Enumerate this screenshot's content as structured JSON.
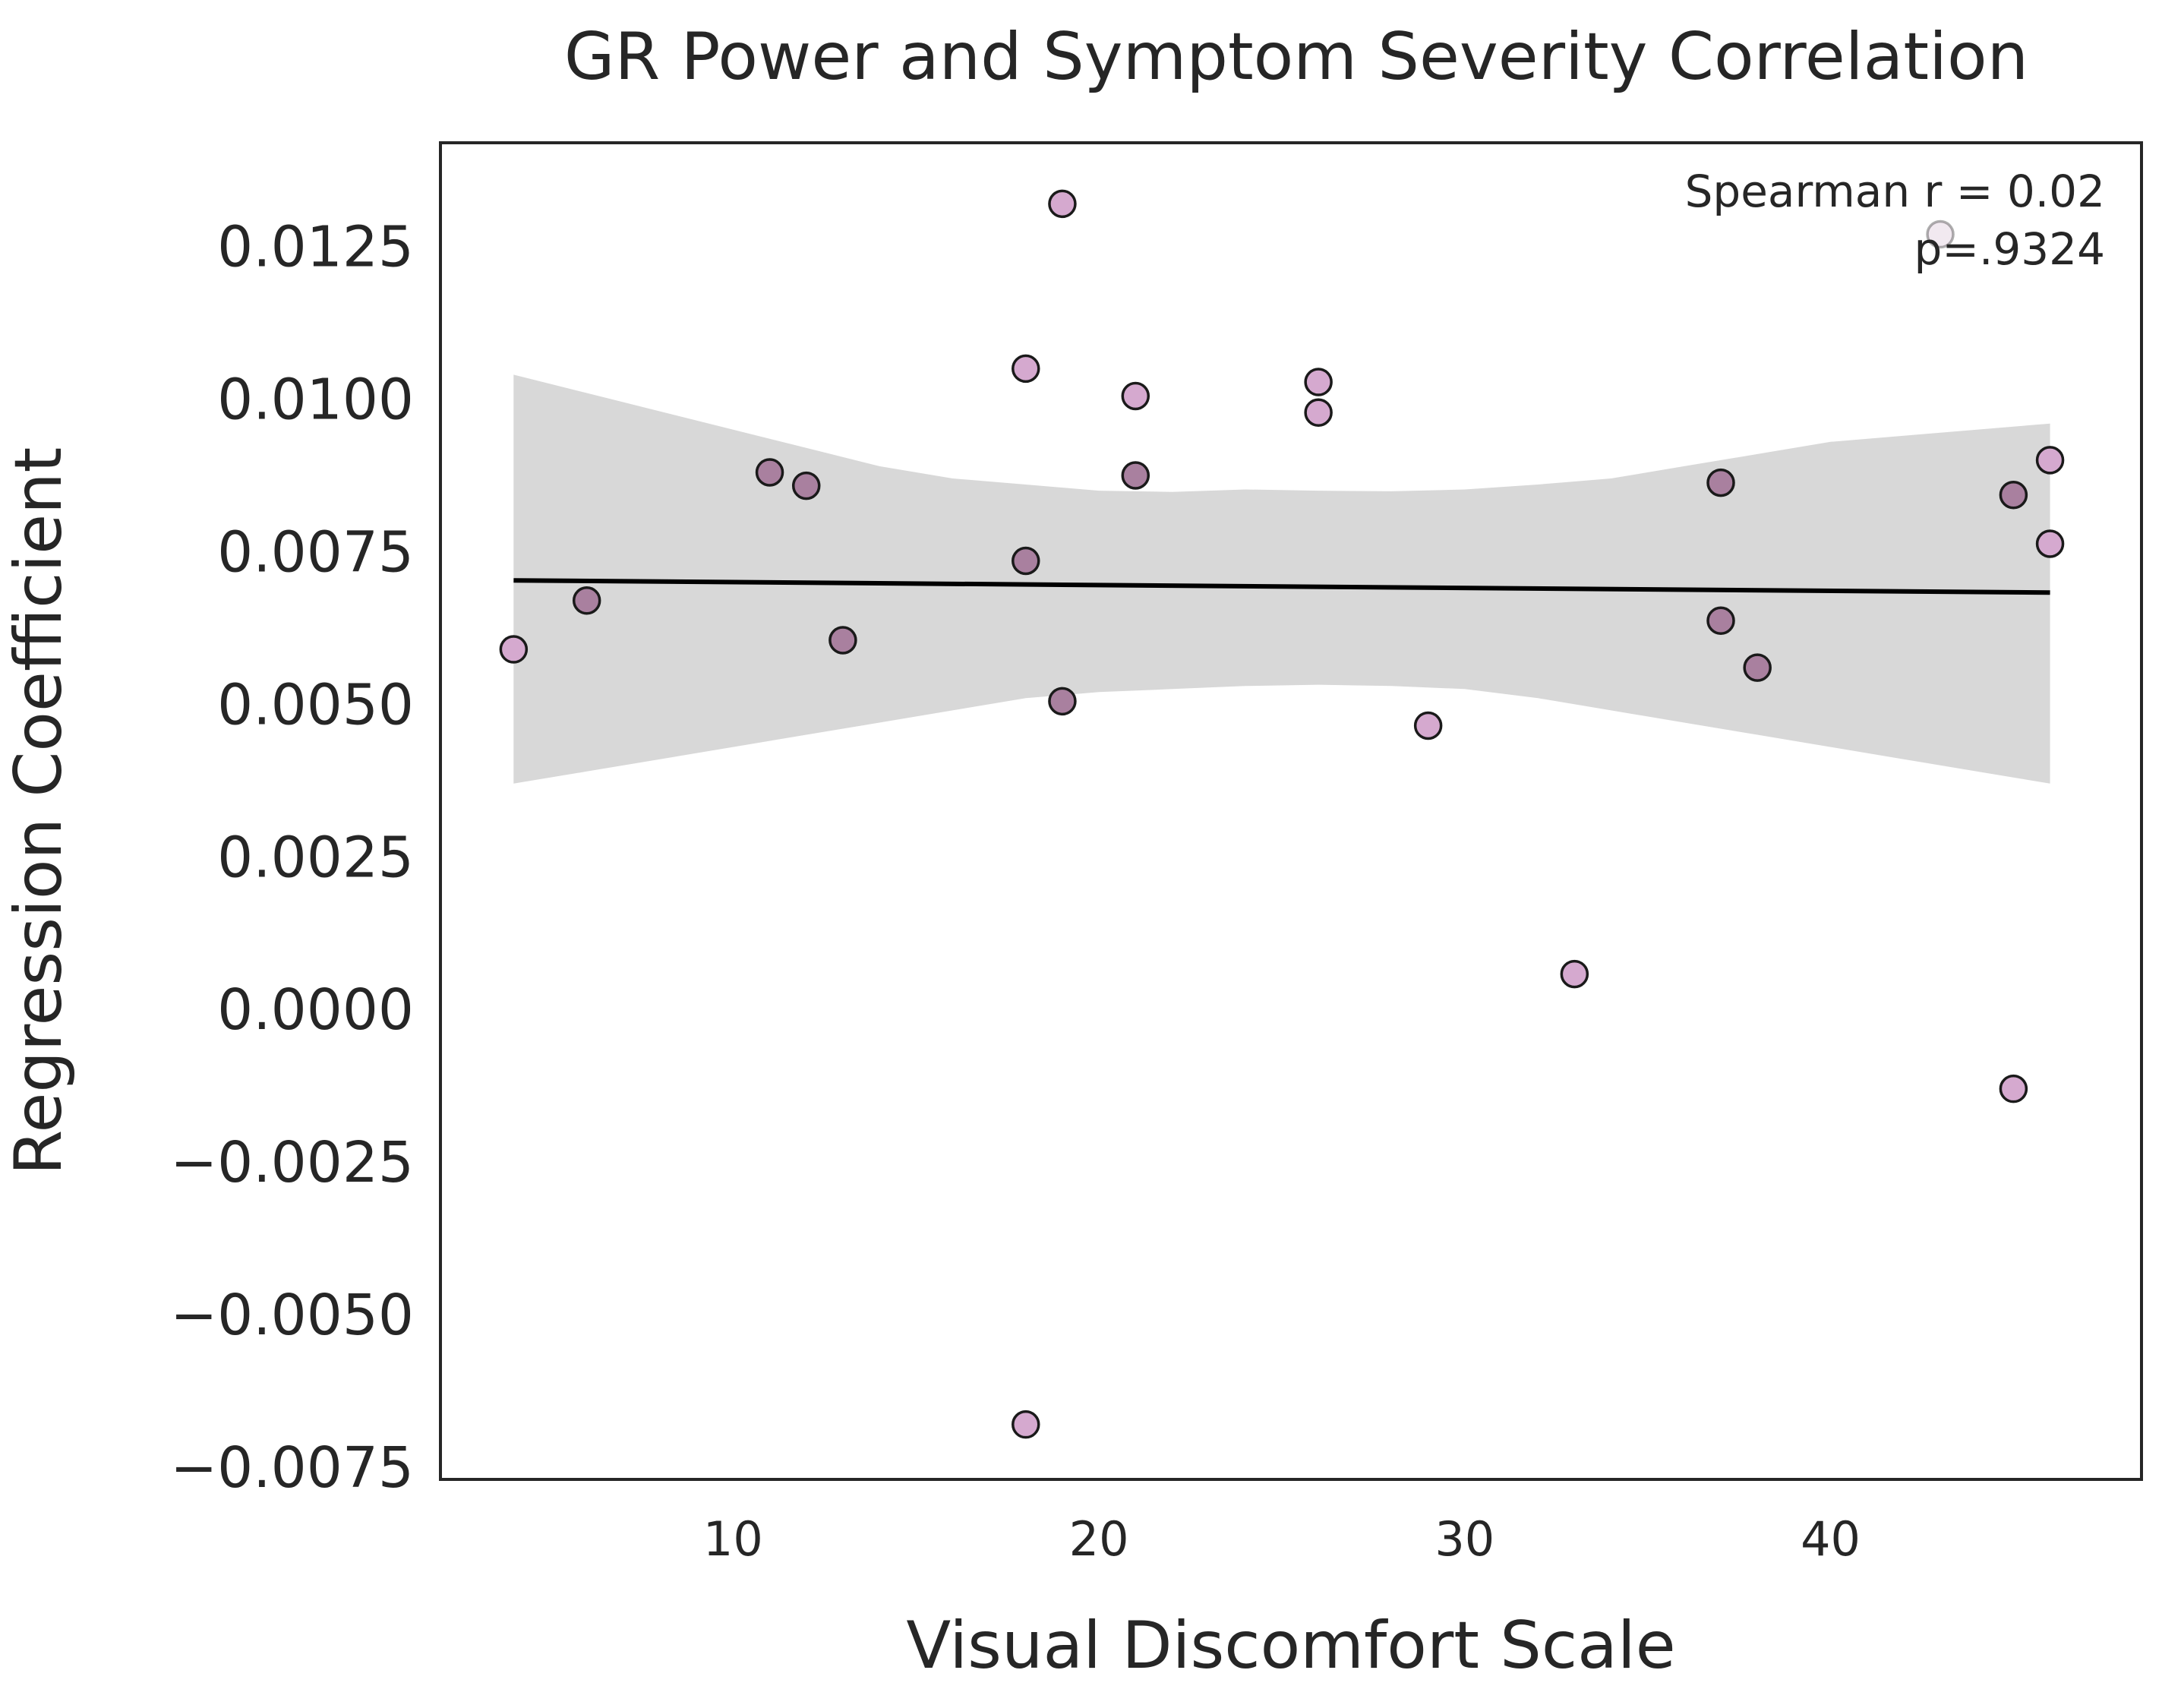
{
  "chart_data": {
    "type": "scatter",
    "title": "GR Power and Symptom Severity Correlation",
    "xlabel": "Visual Discomfort Scale",
    "ylabel": "Regression Coefficient",
    "xlim": [
      2,
      48.5
    ],
    "ylim": [
      -0.0077,
      0.0142
    ],
    "xticks": [
      10,
      20,
      30,
      40
    ],
    "yticks": [
      -0.0075,
      -0.005,
      -0.0025,
      0.0,
      0.0025,
      0.005,
      0.0075,
      0.01,
      0.0125
    ],
    "ytick_labels": [
      "−0.0075",
      "−0.0050",
      "−0.0025",
      "0.0000",
      "0.0025",
      "0.0050",
      "0.0075",
      "0.0100",
      "0.0125"
    ],
    "xtick_labels": [
      "10",
      "20",
      "30",
      "40"
    ],
    "grid": false,
    "annotation": {
      "line1": "Spearman r = 0.02",
      "line2": "p=.9324",
      "position": "top-right"
    },
    "points": [
      {
        "x": 4,
        "y": 0.0059,
        "tone": "light"
      },
      {
        "x": 6,
        "y": 0.0067,
        "tone": "dark"
      },
      {
        "x": 11,
        "y": 0.0088,
        "tone": "dark"
      },
      {
        "x": 12,
        "y": 0.00858,
        "tone": "dark"
      },
      {
        "x": 13,
        "y": 0.00605,
        "tone": "dark"
      },
      {
        "x": 18,
        "y": 0.0105,
        "tone": "light"
      },
      {
        "x": 18,
        "y": 0.00735,
        "tone": "dark"
      },
      {
        "x": 18,
        "y": -0.0068,
        "tone": "light"
      },
      {
        "x": 19,
        "y": 0.0132,
        "tone": "light"
      },
      {
        "x": 19,
        "y": 0.00505,
        "tone": "dark"
      },
      {
        "x": 21,
        "y": 0.01005,
        "tone": "light"
      },
      {
        "x": 21,
        "y": 0.00875,
        "tone": "dark"
      },
      {
        "x": 26,
        "y": 0.01028,
        "tone": "light"
      },
      {
        "x": 26,
        "y": 0.00978,
        "tone": "light"
      },
      {
        "x": 29,
        "y": 0.00465,
        "tone": "light"
      },
      {
        "x": 33,
        "y": 0.00058,
        "tone": "light"
      },
      {
        "x": 37,
        "y": 0.00863,
        "tone": "dark"
      },
      {
        "x": 37,
        "y": 0.00637,
        "tone": "dark"
      },
      {
        "x": 38,
        "y": 0.0056,
        "tone": "dark"
      },
      {
        "x": 43,
        "y": 0.0127,
        "tone": "pale"
      },
      {
        "x": 45,
        "y": 0.00843,
        "tone": "dark"
      },
      {
        "x": 45,
        "y": -0.0013,
        "tone": "light"
      },
      {
        "x": 46,
        "y": 0.009,
        "tone": "light"
      },
      {
        "x": 46,
        "y": 0.00763,
        "tone": "light"
      }
    ],
    "regression": {
      "x0": 4,
      "y0": 0.00703,
      "x1": 46,
      "y1": 0.00683
    },
    "confidence_band": {
      "x": [
        4,
        6,
        8,
        10,
        12,
        14,
        16,
        18,
        20,
        22,
        24,
        26,
        28,
        30,
        32,
        34,
        36,
        38,
        40,
        42,
        44,
        46
      ],
      "upper": [
        0.0104,
        0.0101,
        0.0098,
        0.0095,
        0.0092,
        0.0089,
        0.0087,
        0.0086,
        0.0085,
        0.00848,
        0.00852,
        0.0085,
        0.00849,
        0.00852,
        0.0086,
        0.0087,
        0.0089,
        0.0091,
        0.0093,
        0.0094,
        0.0095,
        0.0096
      ],
      "lower": [
        0.0037,
        0.0039,
        0.0041,
        0.0043,
        0.0045,
        0.0047,
        0.0049,
        0.0051,
        0.0052,
        0.00525,
        0.0053,
        0.00532,
        0.0053,
        0.00525,
        0.0051,
        0.0049,
        0.0047,
        0.0045,
        0.0043,
        0.0041,
        0.0039,
        0.0037
      ]
    },
    "colors": {
      "light": "#d5a9cf",
      "dark": "#a9809f",
      "pale": "#e8dbe6",
      "edge": "#1a1a1a",
      "band": "#d8d8d8",
      "line": "#000000",
      "frame": "#262626"
    }
  }
}
